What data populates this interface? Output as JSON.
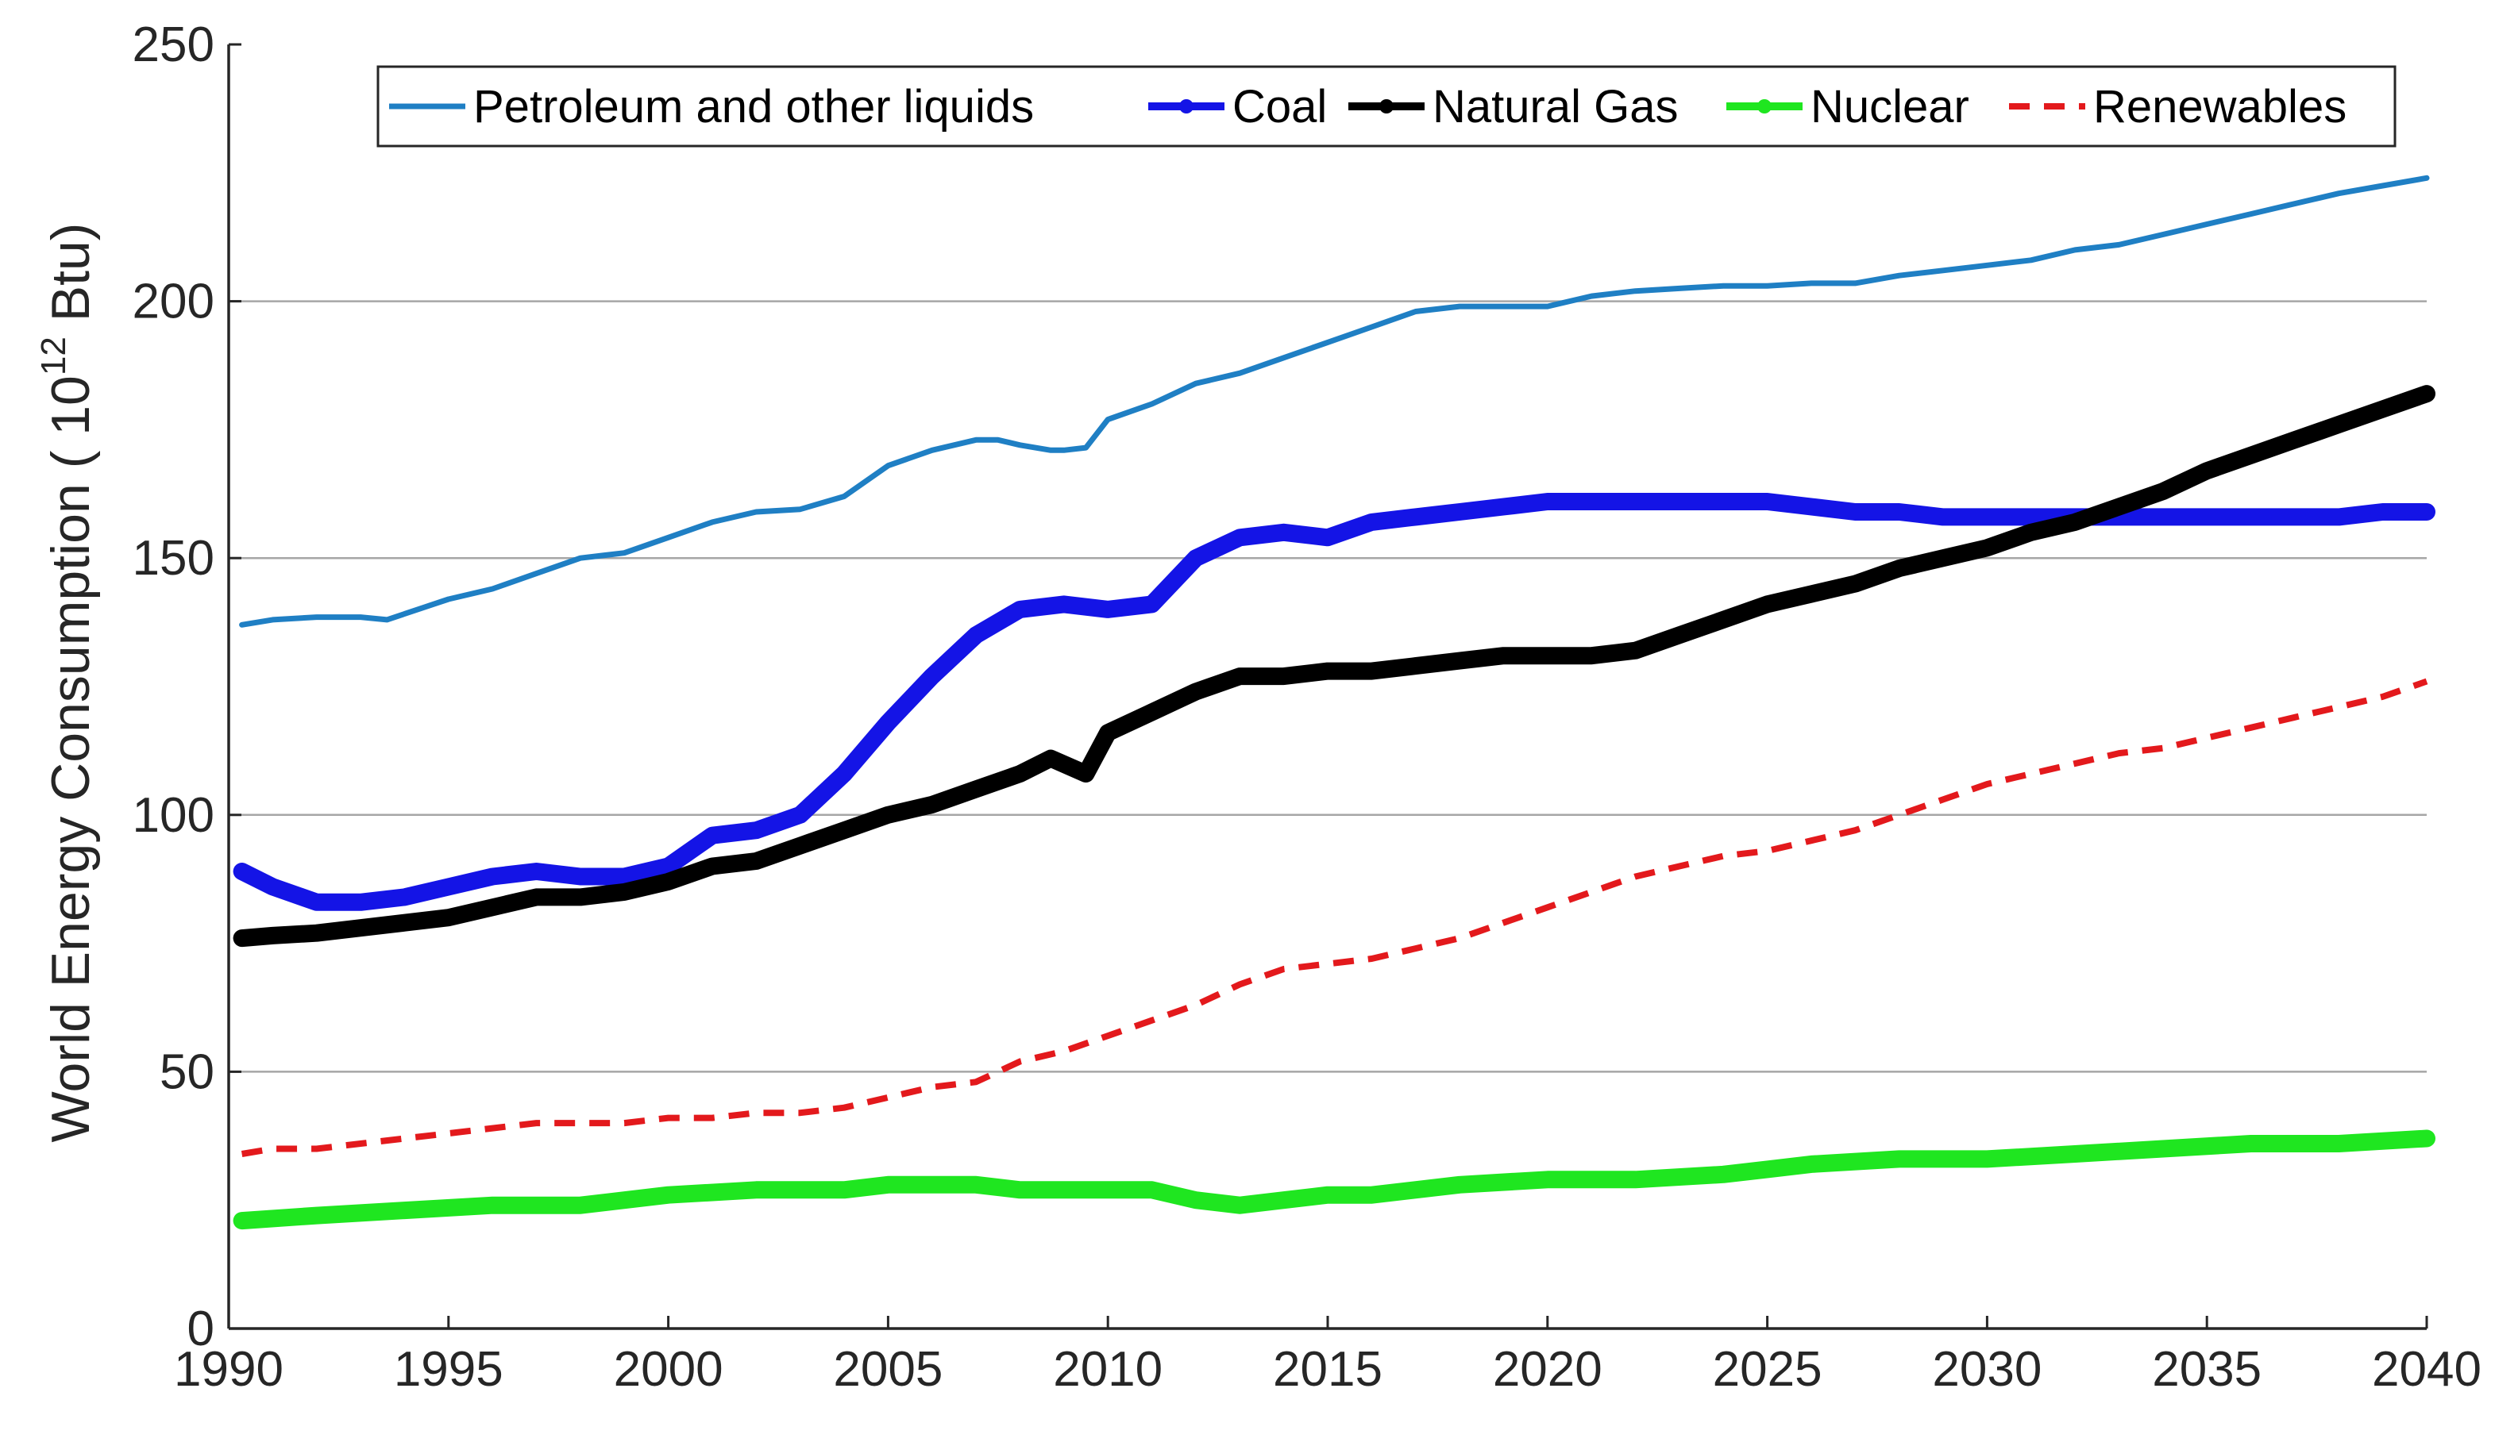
{
  "chart_data": {
    "type": "line",
    "title": "",
    "xlabel": "",
    "ylabel_main": "World Energy Consumption ( 10",
    "ylabel_sup": "12",
    "ylabel_end": " Btu)",
    "xlim": [
      1990,
      2040
    ],
    "ylim": [
      0,
      250
    ],
    "xticks": [
      "1990",
      "1995",
      "2000",
      "2005",
      "2010",
      "2015",
      "2020",
      "2025",
      "2030",
      "2035",
      "2040"
    ],
    "yticks": [
      "0",
      "50",
      "100",
      "150",
      "200",
      "250"
    ],
    "grid": "horizontal",
    "legend_position": "top",
    "series": [
      {
        "name": "Petroleum and other liquids",
        "color": "#1f7fc4",
        "style": "solid-thin",
        "x": [
          1990.3,
          1991,
          1992,
          1993,
          1993.6,
          1995,
          1996,
          1997,
          1998,
          1999,
          2000,
          2001,
          2002,
          2003,
          2004,
          2005,
          2006,
          2007,
          2007.5,
          2008,
          2008.7,
          2009,
          2009.5,
          2010,
          2011,
          2012,
          2013,
          2014,
          2015,
          2016,
          2017,
          2018,
          2018.5,
          2019,
          2020,
          2021,
          2022,
          2023,
          2024,
          2025,
          2026,
          2027,
          2028,
          2029,
          2030,
          2031,
          2032,
          2033,
          2034,
          2035,
          2036,
          2037,
          2038,
          2039,
          2040
        ],
        "y": [
          137,
          138,
          138.5,
          138.5,
          138,
          142,
          144,
          147,
          150,
          151,
          154,
          157,
          159,
          159.5,
          162,
          168,
          171,
          173,
          173,
          172,
          171,
          171,
          171.5,
          177,
          180,
          184,
          186,
          189,
          192,
          195,
          198,
          199,
          199,
          199,
          199,
          201,
          202,
          202.5,
          203,
          203,
          203.5,
          203.5,
          205,
          206,
          207,
          208,
          210,
          211,
          213,
          215,
          217,
          219,
          221,
          222.5,
          224
        ]
      },
      {
        "name": "Coal",
        "color": "#1414e6",
        "style": "marker-thick",
        "x": [
          1990.3,
          1991,
          1992,
          1993,
          1994,
          1995,
          1996,
          1997,
          1998,
          1999,
          2000,
          2001,
          2002,
          2003,
          2004,
          2005,
          2006,
          2007,
          2008,
          2009,
          2010,
          2011,
          2012,
          2013,
          2014,
          2015,
          2016,
          2017,
          2018,
          2019,
          2020,
          2021,
          2022,
          2023,
          2024,
          2025,
          2026,
          2027,
          2028,
          2029,
          2030,
          2031,
          2032,
          2033,
          2034,
          2035,
          2036,
          2037,
          2038,
          2039,
          2040
        ],
        "y": [
          89,
          86,
          83,
          83,
          84,
          86,
          88,
          89,
          88,
          88,
          90,
          96,
          97,
          100,
          108,
          118,
          127,
          135,
          140,
          141,
          140,
          141,
          150,
          154,
          155,
          154,
          157,
          158,
          159,
          160,
          161,
          161,
          161,
          161,
          161,
          161,
          160,
          159,
          159,
          158,
          158,
          158,
          158,
          158,
          158,
          158,
          158,
          158,
          158,
          159,
          159
        ]
      },
      {
        "name": "Natural Gas",
        "color": "#000000",
        "style": "marker-thick",
        "x": [
          1990.3,
          1991,
          1992,
          1993,
          1994,
          1995,
          1996,
          1997,
          1998,
          1999,
          2000,
          2001,
          2002,
          2003,
          2004,
          2005,
          2006,
          2007,
          2008,
          2008.7,
          2009.5,
          2010,
          2011,
          2012,
          2013,
          2014,
          2015,
          2016,
          2017,
          2018,
          2019,
          2020,
          2021,
          2022,
          2023,
          2024,
          2025,
          2026,
          2027,
          2028,
          2029,
          2030,
          2031,
          2032,
          2033,
          2034,
          2035,
          2036,
          2037,
          2038,
          2039,
          2040
        ],
        "y": [
          76,
          76.5,
          77,
          78,
          79,
          80,
          82,
          84,
          84,
          85,
          87,
          90,
          91,
          94,
          97,
          100,
          102,
          105,
          108,
          111,
          108,
          116,
          120,
          124,
          127,
          127,
          128,
          128,
          129,
          130,
          131,
          131,
          131,
          132,
          135,
          138,
          141,
          143,
          145,
          148,
          150,
          152,
          155,
          157,
          160,
          163,
          167,
          170,
          173,
          176,
          179,
          182
        ]
      },
      {
        "name": "Nuclear",
        "color": "#1fe620",
        "style": "marker-thick",
        "x": [
          1990.3,
          1992,
          1994,
          1996,
          1998,
          2000,
          2002,
          2003,
          2004,
          2005,
          2007,
          2008,
          2009,
          2010,
          2011,
          2012,
          2013,
          2014,
          2015,
          2016,
          2018,
          2020,
          2022,
          2024,
          2025,
          2026,
          2028,
          2030,
          2032,
          2034,
          2036,
          2038,
          2040
        ],
        "y": [
          21,
          22,
          23,
          24,
          24,
          26,
          27,
          27,
          27,
          28,
          28,
          27,
          27,
          27,
          27,
          25,
          24,
          25,
          26,
          26,
          28,
          29,
          29,
          30,
          31,
          32,
          33,
          33,
          34,
          35,
          36,
          36,
          37
        ]
      },
      {
        "name": "Renewables",
        "color": "#e3191c",
        "style": "dashed",
        "x": [
          1990.3,
          1991,
          1992,
          1993,
          1994,
          1995,
          1996,
          1997,
          1998,
          1999,
          2000,
          2001,
          2002,
          2003,
          2004,
          2005,
          2006,
          2007,
          2008,
          2009,
          2010,
          2011,
          2012,
          2013,
          2014,
          2015,
          2016,
          2017,
          2018,
          2019,
          2020,
          2021,
          2022,
          2023,
          2024,
          2025,
          2026,
          2027,
          2028,
          2029,
          2030,
          2031,
          2032,
          2033,
          2034,
          2035,
          2036,
          2037,
          2038,
          2039,
          2040
        ],
        "y": [
          34,
          35,
          35,
          36,
          37,
          38,
          39,
          40,
          40,
          40,
          41,
          41,
          42,
          42,
          43,
          45,
          47,
          48,
          52,
          54,
          57,
          60,
          63,
          67,
          70,
          71,
          72,
          74,
          76,
          79,
          82,
          85,
          88,
          90,
          92,
          93,
          95,
          97,
          100,
          103,
          106,
          108,
          110,
          112,
          113,
          115,
          117,
          119,
          121,
          123,
          126
        ]
      }
    ]
  }
}
